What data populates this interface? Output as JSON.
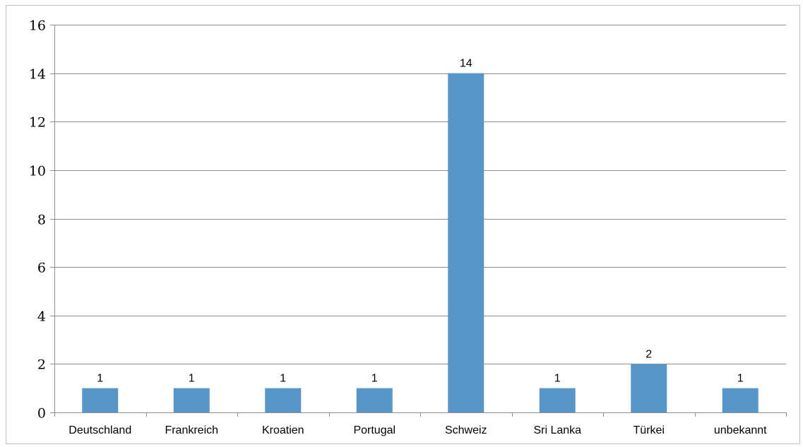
{
  "chart_data": {
    "type": "bar",
    "title": "",
    "xlabel": "",
    "ylabel": "",
    "categories": [
      "Deutschland",
      "Frankreich",
      "Kroatien",
      "Portugal",
      "Schweiz",
      "Sri Lanka",
      "Türkei",
      "unbekannt"
    ],
    "values": [
      1,
      1,
      1,
      1,
      14,
      1,
      2,
      1
    ],
    "data_labels": [
      "1",
      "1",
      "1",
      "1",
      "14",
      "1",
      "2",
      "1"
    ],
    "ylim": [
      0,
      16
    ],
    "yticks": [
      0,
      2,
      4,
      6,
      8,
      10,
      12,
      14,
      16
    ],
    "ytick_labels": [
      "0",
      "2",
      "4",
      "6",
      "8",
      "10",
      "12",
      "14",
      "16"
    ],
    "grid": true,
    "legend": "none",
    "colors": {
      "bar": "#5796c7",
      "grid": "#8c8c8c",
      "axis": "#8c8c8c",
      "frame": "#bfbfbf"
    }
  }
}
